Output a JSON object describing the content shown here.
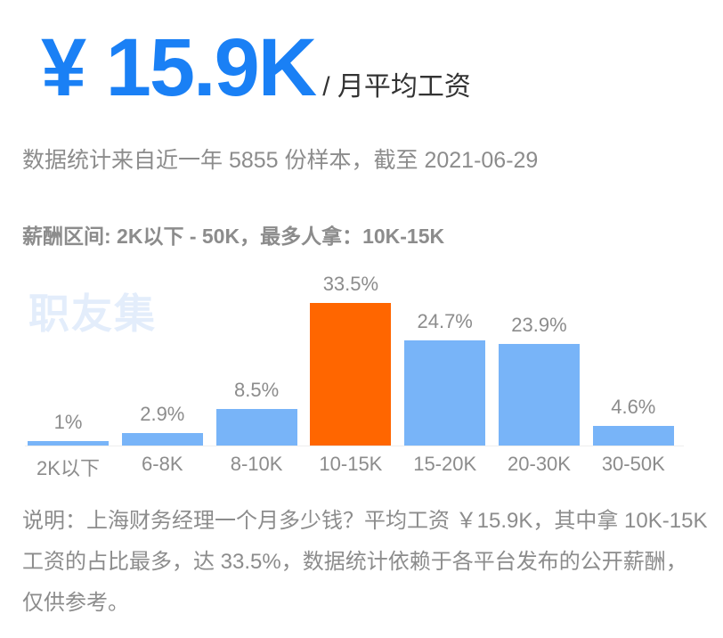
{
  "header": {
    "amount": "¥ 15.9K",
    "unit": "/ 月平均工资"
  },
  "subtitle": "数据统计来自近一年 5855 份样本，截至 2021-06-29",
  "range_line": "薪酬区间: 2K以下 - 50K，最多人拿：10K-15K",
  "watermark": "职友集",
  "colors": {
    "accent": "#1a80f5",
    "bar": "#78b4f8",
    "highlight": "#ff6600",
    "text": "#8c8c8c"
  },
  "chart_data": {
    "type": "bar",
    "title": "",
    "xlabel": "",
    "ylabel": "",
    "categories": [
      "2K以下",
      "6-8K",
      "8-10K",
      "10-15K",
      "15-20K",
      "20-30K",
      "30-50K"
    ],
    "values": [
      1,
      2.9,
      8.5,
      33.5,
      24.7,
      23.9,
      4.6
    ],
    "labels": [
      "1%",
      "2.9%",
      "8.5%",
      "33.5%",
      "24.7%",
      "23.9%",
      "4.6%"
    ],
    "highlight_index": 3,
    "grid": false,
    "ylim": [
      0,
      33.5
    ]
  },
  "note": "说明：上海财务经理一个月多少钱？平均工资 ￥15.9K，其中拿 10K-15K 工资的占比最多，达 33.5%，数据统计依赖于各平台发布的公开薪酬，仅供参考。"
}
